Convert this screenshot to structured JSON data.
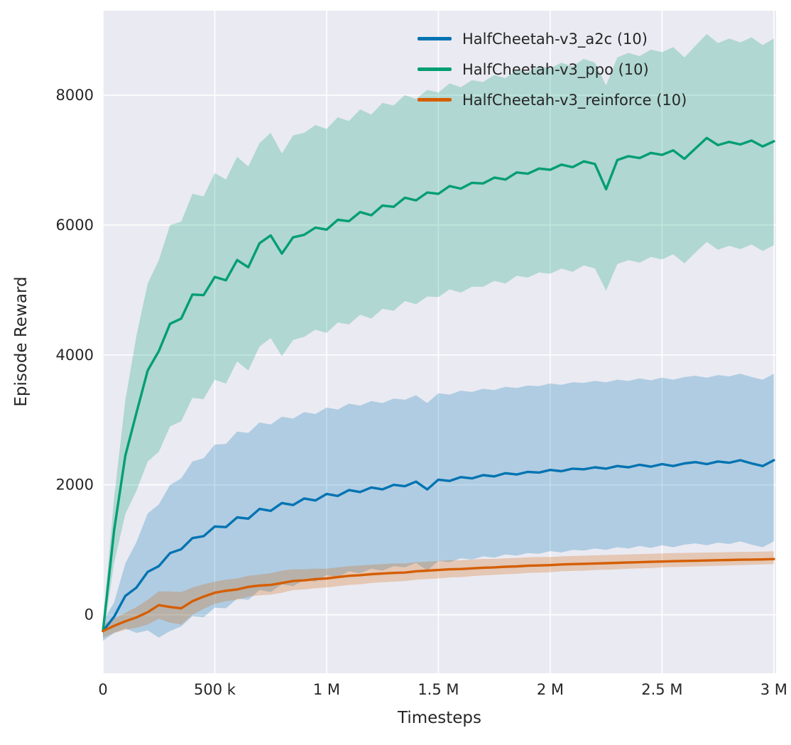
{
  "figure": {
    "background": "#ffffff",
    "axes_background": "#eaeaf2",
    "grid_color": "#ffffff",
    "text_color": "#262626"
  },
  "chart_data": {
    "type": "line",
    "title": "",
    "xlabel": "Timesteps",
    "ylabel": "Episode Reward",
    "grid": true,
    "legend_position": "upper center",
    "band_alpha": 0.25,
    "xlim": [
      0,
      3010000
    ],
    "ylim": [
      -900,
      9300
    ],
    "x_ticks": [
      {
        "value": 0,
        "label": "0"
      },
      {
        "value": 500000,
        "label": "500 k"
      },
      {
        "value": 1000000,
        "label": "1 M"
      },
      {
        "value": 1500000,
        "label": "1.5 M"
      },
      {
        "value": 2000000,
        "label": "2 M"
      },
      {
        "value": 2500000,
        "label": "2.5 M"
      },
      {
        "value": 3000000,
        "label": "3 M"
      }
    ],
    "y_ticks": [
      {
        "value": 0,
        "label": "0"
      },
      {
        "value": 2000,
        "label": "2000"
      },
      {
        "value": 4000,
        "label": "4000"
      },
      {
        "value": 6000,
        "label": "6000"
      },
      {
        "value": 8000,
        "label": "8000"
      }
    ],
    "x": [
      0,
      50000,
      100000,
      150000,
      200000,
      250000,
      300000,
      350000,
      400000,
      450000,
      500000,
      550000,
      600000,
      650000,
      700000,
      750000,
      800000,
      850000,
      900000,
      950000,
      1000000,
      1050000,
      1100000,
      1150000,
      1200000,
      1250000,
      1300000,
      1350000,
      1400000,
      1450000,
      1500000,
      1550000,
      1600000,
      1650000,
      1700000,
      1750000,
      1800000,
      1850000,
      1900000,
      1950000,
      2000000,
      2050000,
      2100000,
      2150000,
      2200000,
      2250000,
      2300000,
      2350000,
      2400000,
      2450000,
      2500000,
      2550000,
      2600000,
      2650000,
      2700000,
      2750000,
      2800000,
      2850000,
      2900000,
      2950000,
      3000000
    ],
    "series": [
      {
        "name": "HalfCheetah-v3_a2c (10)",
        "color": "#0173b2",
        "mean": [
          -250,
          -30,
          290,
          420,
          660,
          750,
          950,
          1010,
          1180,
          1210,
          1360,
          1350,
          1500,
          1480,
          1630,
          1600,
          1720,
          1690,
          1790,
          1760,
          1860,
          1830,
          1920,
          1890,
          1960,
          1930,
          2000,
          1980,
          2050,
          1930,
          2080,
          2060,
          2120,
          2100,
          2150,
          2130,
          2180,
          2160,
          2200,
          2190,
          2230,
          2210,
          2250,
          2240,
          2270,
          2250,
          2290,
          2270,
          2310,
          2280,
          2320,
          2290,
          2330,
          2350,
          2320,
          2360,
          2340,
          2380,
          2330,
          2290,
          2380
        ],
        "low": [
          -400,
          -280,
          -210,
          -280,
          -240,
          -350,
          -250,
          -180,
          -20,
          -40,
          110,
          100,
          250,
          230,
          380,
          350,
          470,
          440,
          540,
          510,
          610,
          580,
          670,
          640,
          710,
          680,
          750,
          730,
          800,
          680,
          830,
          810,
          870,
          850,
          900,
          880,
          930,
          910,
          950,
          940,
          980,
          960,
          1000,
          990,
          1020,
          1000,
          1040,
          1020,
          1060,
          1030,
          1070,
          1040,
          1080,
          1100,
          1070,
          1110,
          1090,
          1130,
          1080,
          1040,
          1130
        ],
        "high": [
          -100,
          190,
          790,
          1120,
          1560,
          1700,
          2000,
          2100,
          2360,
          2410,
          2620,
          2630,
          2820,
          2800,
          2960,
          2930,
          3050,
          3020,
          3120,
          3090,
          3190,
          3160,
          3250,
          3220,
          3290,
          3260,
          3330,
          3310,
          3380,
          3260,
          3410,
          3390,
          3450,
          3430,
          3480,
          3460,
          3510,
          3490,
          3530,
          3520,
          3560,
          3540,
          3580,
          3570,
          3600,
          3580,
          3620,
          3600,
          3640,
          3610,
          3650,
          3620,
          3660,
          3680,
          3650,
          3690,
          3670,
          3710,
          3660,
          3620,
          3710
        ]
      },
      {
        "name": "HalfCheetah-v3_ppo (10)",
        "color": "#029e73",
        "mean": [
          -250,
          1300,
          2450,
          3110,
          3760,
          4060,
          4480,
          4560,
          4930,
          4920,
          5200,
          5150,
          5460,
          5350,
          5720,
          5840,
          5560,
          5810,
          5850,
          5960,
          5930,
          6080,
          6060,
          6200,
          6150,
          6300,
          6280,
          6420,
          6380,
          6500,
          6480,
          6600,
          6560,
          6650,
          6640,
          6730,
          6700,
          6810,
          6790,
          6870,
          6850,
          6930,
          6890,
          6980,
          6940,
          6550,
          7000,
          7060,
          7030,
          7110,
          7080,
          7150,
          7020,
          7180,
          7340,
          7230,
          7280,
          7240,
          7300,
          7210,
          7290
        ],
        "low": [
          -350,
          800,
          1550,
          1910,
          2360,
          2510,
          2900,
          2980,
          3340,
          3320,
          3620,
          3560,
          3900,
          3760,
          4130,
          4260,
          3980,
          4230,
          4280,
          4390,
          4340,
          4500,
          4470,
          4620,
          4560,
          4710,
          4680,
          4830,
          4780,
          4900,
          4890,
          5010,
          4960,
          5050,
          5050,
          5140,
          5100,
          5220,
          5190,
          5270,
          5250,
          5330,
          5280,
          5380,
          5330,
          4990,
          5400,
          5460,
          5420,
          5510,
          5470,
          5550,
          5410,
          5580,
          5740,
          5620,
          5680,
          5630,
          5700,
          5600,
          5690
        ],
        "high": [
          -150,
          1800,
          3300,
          4300,
          5100,
          5460,
          6000,
          6050,
          6480,
          6440,
          6800,
          6700,
          7050,
          6900,
          7260,
          7420,
          7100,
          7380,
          7420,
          7540,
          7480,
          7660,
          7600,
          7780,
          7700,
          7880,
          7840,
          8000,
          7940,
          8080,
          8040,
          8180,
          8120,
          8230,
          8200,
          8310,
          8260,
          8390,
          8350,
          8450,
          8410,
          8500,
          8440,
          8560,
          8500,
          8150,
          8580,
          8650,
          8600,
          8700,
          8660,
          8740,
          8580,
          8760,
          8940,
          8800,
          8870,
          8810,
          8890,
          8770,
          8870
        ]
      },
      {
        "name": "HalfCheetah-v3_reinforce (10)",
        "color": "#d55e00",
        "mean": [
          -250,
          -170,
          -100,
          -40,
          40,
          150,
          120,
          100,
          210,
          280,
          340,
          370,
          390,
          430,
          450,
          460,
          490,
          520,
          530,
          550,
          560,
          580,
          600,
          610,
          625,
          635,
          645,
          650,
          670,
          680,
          690,
          700,
          705,
          715,
          725,
          730,
          740,
          745,
          755,
          760,
          765,
          775,
          780,
          785,
          790,
          795,
          800,
          805,
          810,
          815,
          820,
          825,
          830,
          832,
          836,
          840,
          844,
          848,
          850,
          853,
          858
        ],
        "low": [
          -350,
          -280,
          -230,
          -200,
          -150,
          -60,
          -120,
          -150,
          0,
          90,
          170,
          210,
          230,
          280,
          300,
          310,
          340,
          380,
          390,
          410,
          420,
          440,
          460,
          470,
          490,
          500,
          510,
          520,
          540,
          550,
          560,
          575,
          580,
          595,
          605,
          615,
          625,
          630,
          645,
          650,
          655,
          670,
          675,
          680,
          690,
          695,
          700,
          710,
          715,
          720,
          730,
          735,
          740,
          745,
          750,
          755,
          760,
          765,
          770,
          775,
          780
        ],
        "high": [
          -150,
          -60,
          30,
          120,
          230,
          360,
          360,
          350,
          420,
          470,
          510,
          540,
          560,
          600,
          620,
          640,
          680,
          700,
          700,
          710,
          710,
          730,
          750,
          760,
          770,
          780,
          790,
          790,
          810,
          820,
          830,
          840,
          840,
          850,
          860,
          860,
          870,
          875,
          885,
          890,
          890,
          900,
          905,
          910,
          915,
          920,
          925,
          930,
          935,
          940,
          945,
          950,
          952,
          955,
          958,
          962,
          965,
          968,
          970,
          973,
          978
        ]
      }
    ]
  }
}
